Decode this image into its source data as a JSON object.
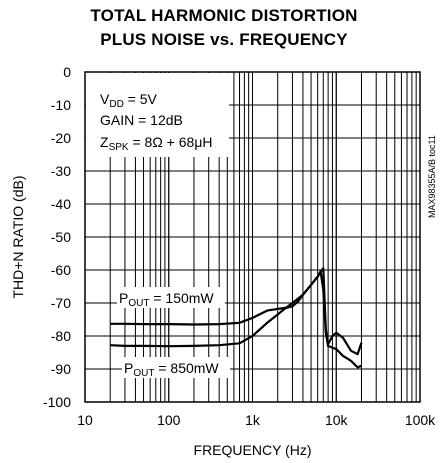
{
  "chart_data": {
    "type": "line",
    "title": [
      "TOTAL HARMONIC DISTORTION",
      "PLUS NOISE vs. FREQUENCY"
    ],
    "xlabel": "FREQUENCY (Hz)",
    "ylabel": "THD+N RATIO (dB)",
    "x_scale": "log",
    "xlim": [
      10,
      100000
    ],
    "ylim": [
      -100,
      0
    ],
    "x_ticks": [
      10,
      100,
      1000,
      10000,
      100000
    ],
    "x_tick_labels": [
      "10",
      "100",
      "1k",
      "10k",
      "100k"
    ],
    "y_ticks": [
      0,
      -10,
      -20,
      -30,
      -40,
      -50,
      -60,
      -70,
      -80,
      -90,
      -100
    ],
    "y_tick_labels": [
      "0",
      "-10",
      "-20",
      "-30",
      "-40",
      "-50",
      "-60",
      "-70",
      "-80",
      "-90",
      "-100"
    ],
    "grid": true,
    "conditions": [
      "VDD = 5V",
      "GAIN = 12dB",
      "ZSPK = 8Ω + 68μH"
    ],
    "tag": "MAX98355A/B toc11",
    "series": [
      {
        "name": "POUT = 150mW",
        "x": [
          20,
          30,
          50,
          100,
          200,
          400,
          700,
          1000,
          1500,
          2000,
          2500,
          3000,
          3500,
          4000,
          5000,
          6000,
          6600,
          7000,
          7500,
          8000,
          9000,
          10000,
          12000,
          15000,
          18000,
          20000
        ],
        "y": [
          -76.3,
          -76.3,
          -76.4,
          -76.4,
          -76.5,
          -76.4,
          -76.0,
          -74.5,
          -72.3,
          -71.8,
          -71.5,
          -71.0,
          -69.5,
          -67.5,
          -64.5,
          -62.0,
          -60.2,
          -59.5,
          -78.0,
          -82.5,
          -80.0,
          -79.0,
          -80.5,
          -84.5,
          -85.5,
          -82.0
        ]
      },
      {
        "name": "POUT = 850mW",
        "x": [
          20,
          30,
          50,
          100,
          200,
          400,
          700,
          1000,
          1500,
          2000,
          2500,
          3000,
          4000,
          5000,
          6000,
          6500,
          7000,
          7500,
          8000,
          9000,
          10000,
          12000,
          15000,
          18000,
          20000
        ],
        "y": [
          -82.8,
          -83.0,
          -83.0,
          -83.1,
          -83.0,
          -82.8,
          -82.2,
          -80.0,
          -76.0,
          -73.5,
          -71.5,
          -70.0,
          -67.5,
          -64.5,
          -62.0,
          -60.5,
          -66.0,
          -79.0,
          -83.0,
          -83.5,
          -84.0,
          -86.0,
          -87.5,
          -89.5,
          -89.0
        ]
      }
    ]
  }
}
